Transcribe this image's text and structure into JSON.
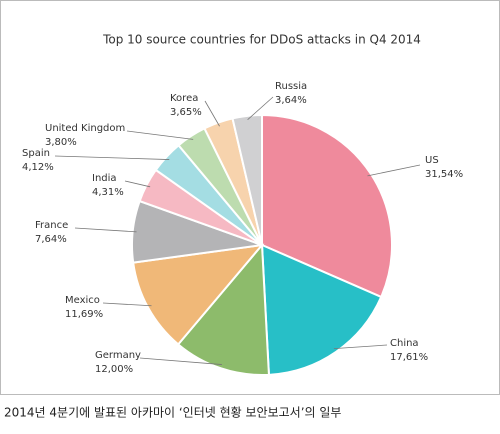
{
  "chart_data": {
    "type": "pie",
    "title": "Top 10 source countries for DDoS attacks in Q4 2014",
    "categories": [
      "US",
      "China",
      "Germany",
      "Mexico",
      "France",
      "India",
      "Spain",
      "United Kingdom",
      "Korea",
      "Russia"
    ],
    "values": [
      31.54,
      17.61,
      12.0,
      11.69,
      7.64,
      4.31,
      4.12,
      3.8,
      3.65,
      3.64
    ],
    "value_labels": [
      "31,54%",
      "17,61%",
      "12,00%",
      "11,69%",
      "7,64%",
      "4,31%",
      "4,12%",
      "3,80%",
      "3,65%",
      "3,64%"
    ],
    "colors": [
      "#ef8a9c",
      "#27bfc7",
      "#8dbb6b",
      "#f0b878",
      "#b4b4b6",
      "#f6b9c3",
      "#a4dde3",
      "#bddcaf",
      "#f7d3ad",
      "#d0d0d2"
    ]
  },
  "caption": "2014년 4분기에 발표된 아카마이 ‘인터넷 현황 보안보고서’의 일부"
}
